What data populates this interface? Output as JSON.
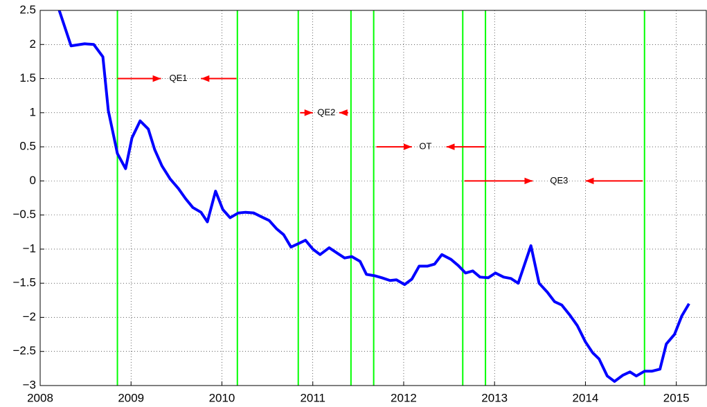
{
  "chart_data": {
    "type": "line",
    "x": [
      2008.21,
      2008.34,
      2008.49,
      2008.59,
      2008.69,
      2008.75,
      2008.85,
      2008.94,
      2009.01,
      2009.1,
      2009.19,
      2009.26,
      2009.34,
      2009.43,
      2009.52,
      2009.6,
      2009.68,
      2009.77,
      2009.84,
      2009.93,
      2010.01,
      2010.09,
      2010.18,
      2010.26,
      2010.35,
      2010.44,
      2010.52,
      2010.6,
      2010.68,
      2010.76,
      2010.84,
      2010.92,
      2011.0,
      2011.08,
      2011.18,
      2011.27,
      2011.35,
      2011.43,
      2011.52,
      2011.59,
      2011.68,
      2011.76,
      2011.85,
      2011.92,
      2012.01,
      2012.09,
      2012.17,
      2012.26,
      2012.34,
      2012.42,
      2012.52,
      2012.6,
      2012.68,
      2012.76,
      2012.84,
      2012.93,
      2013.01,
      2013.1,
      2013.18,
      2013.26,
      2013.4,
      2013.49,
      2013.58,
      2013.66,
      2013.74,
      2013.83,
      2013.91,
      2014.0,
      2014.08,
      2014.15,
      2014.24,
      2014.32,
      2014.41,
      2014.49,
      2014.56,
      2014.65,
      2014.73,
      2014.82,
      2014.89,
      2014.98,
      2015.06,
      2015.14
    ],
    "values": [
      2.5,
      1.98,
      2.01,
      2.0,
      1.82,
      1.03,
      0.4,
      0.18,
      0.63,
      0.88,
      0.76,
      0.46,
      0.22,
      0.03,
      -0.11,
      -0.26,
      -0.39,
      -0.46,
      -0.6,
      -0.15,
      -0.42,
      -0.54,
      -0.47,
      -0.46,
      -0.47,
      -0.53,
      -0.58,
      -0.7,
      -0.79,
      -0.97,
      -0.92,
      -0.87,
      -1.0,
      -1.08,
      -0.98,
      -1.06,
      -1.13,
      -1.11,
      -1.18,
      -1.37,
      -1.39,
      -1.42,
      -1.46,
      -1.45,
      -1.52,
      -1.44,
      -1.25,
      -1.25,
      -1.22,
      -1.08,
      -1.15,
      -1.24,
      -1.35,
      -1.32,
      -1.41,
      -1.42,
      -1.35,
      -1.41,
      -1.43,
      -1.5,
      -0.95,
      -1.5,
      -1.63,
      -1.77,
      -1.82,
      -1.97,
      -2.12,
      -2.36,
      -2.52,
      -2.61,
      -2.86,
      -2.94,
      -2.85,
      -2.8,
      -2.86,
      -2.79,
      -2.79,
      -2.76,
      -2.39,
      -2.25,
      -1.98,
      -1.8
    ],
    "color": "#0000ff",
    "xlim": [
      2008,
      2015.33
    ],
    "ylim": [
      -3,
      2.5
    ],
    "xticks": [
      2008,
      2009,
      2010,
      2011,
      2012,
      2013,
      2014,
      2015
    ],
    "yticks": [
      {
        "value": -3,
        "label": "−3"
      },
      {
        "value": -2.5,
        "label": "−2.5"
      },
      {
        "value": -2,
        "label": "−2"
      },
      {
        "value": -1.5,
        "label": "−1.5"
      },
      {
        "value": -1,
        "label": "−1"
      },
      {
        "value": -0.5,
        "label": "−0.5"
      },
      0,
      0.5,
      1,
      1.5,
      2,
      2.5
    ],
    "grid": true,
    "vlines": {
      "color": "#00ff00",
      "x": [
        2008.85,
        2010.17,
        2010.84,
        2011.42,
        2011.67,
        2012.65,
        2012.9,
        2014.65
      ]
    },
    "annotations": {
      "color": "#ff0000",
      "items": [
        {
          "text": "QE1",
          "x": 2009.52,
          "y": 1.5,
          "arrows": [
            [
              2008.85,
              2009.33
            ],
            [
              2010.16,
              2009.77
            ]
          ]
        },
        {
          "text": "QE2",
          "x": 2011.15,
          "y": 1.0,
          "arrows": [
            [
              2010.86,
              2011.0
            ],
            [
              2011.39,
              2011.29
            ]
          ]
        },
        {
          "text": "OT",
          "x": 2012.24,
          "y": 0.5,
          "arrows": [
            [
              2011.7,
              2012.09
            ],
            [
              2012.89,
              2012.47
            ]
          ]
        },
        {
          "text": "QE3",
          "x": 2013.71,
          "y": 0,
          "arrows": [
            [
              2012.67,
              2013.42
            ],
            [
              2014.63,
              2014.0
            ]
          ]
        }
      ]
    }
  }
}
